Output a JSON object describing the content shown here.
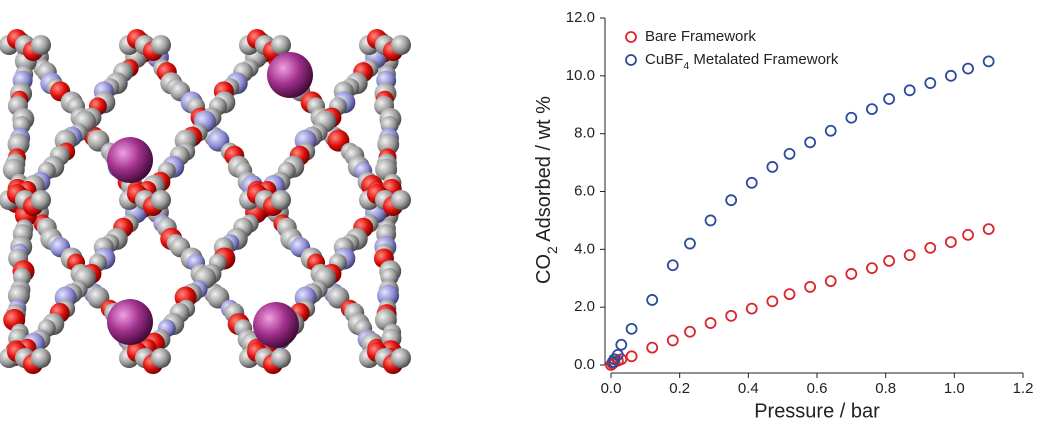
{
  "chart_data": {
    "type": "scatter",
    "xlabel": "Pressure / bar",
    "ylabel": [
      "CO",
      "2",
      " Adsorbed / wt %"
    ],
    "xlim": [
      0,
      1.2
    ],
    "xticks": [
      {
        "value": 0,
        "label": "0.0"
      },
      0.2,
      0.4,
      0.6,
      0.8,
      {
        "value": 1,
        "label": "1.0"
      },
      1.2
    ],
    "ylim": [
      0,
      12
    ],
    "yticks": [
      {
        "value": 0,
        "label": "0.0"
      },
      {
        "value": 2,
        "label": "2.0"
      },
      {
        "value": 4,
        "label": "4.0"
      },
      {
        "value": 6,
        "label": "6.0"
      },
      {
        "value": 8,
        "label": "8.0"
      },
      {
        "value": 10,
        "label": "10.0"
      },
      {
        "value": 12,
        "label": "12.0"
      }
    ],
    "legend": "upper left",
    "series": [
      {
        "name": [
          "Bare Framework"
        ],
        "color": "#d8262b",
        "x": [
          0.0,
          0.005,
          0.01,
          0.02,
          0.03,
          0.06,
          0.12,
          0.18,
          0.23,
          0.29,
          0.35,
          0.41,
          0.47,
          0.52,
          0.58,
          0.64,
          0.7,
          0.76,
          0.81,
          0.87,
          0.93,
          0.99,
          1.04,
          1.1
        ],
        "values": [
          0.0,
          0.05,
          0.1,
          0.15,
          0.2,
          0.3,
          0.6,
          0.85,
          1.15,
          1.45,
          1.7,
          1.95,
          2.2,
          2.45,
          2.7,
          2.9,
          3.15,
          3.35,
          3.6,
          3.8,
          4.05,
          4.25,
          4.5,
          4.7
        ]
      },
      {
        "name": [
          "CuBF",
          "4",
          " Metalated Framework"
        ],
        "color": "#2b4c9b",
        "x": [
          0.005,
          0.01,
          0.02,
          0.03,
          0.06,
          0.12,
          0.18,
          0.23,
          0.29,
          0.35,
          0.41,
          0.47,
          0.52,
          0.58,
          0.64,
          0.7,
          0.76,
          0.81,
          0.87,
          0.93,
          0.99,
          1.04,
          1.1
        ],
        "values": [
          0.1,
          0.2,
          0.35,
          0.7,
          1.25,
          2.25,
          3.45,
          4.2,
          5.0,
          5.7,
          6.3,
          6.85,
          7.3,
          7.7,
          8.1,
          8.55,
          8.85,
          9.2,
          9.5,
          9.75,
          10.0,
          10.25,
          10.5
        ]
      }
    ]
  }
}
